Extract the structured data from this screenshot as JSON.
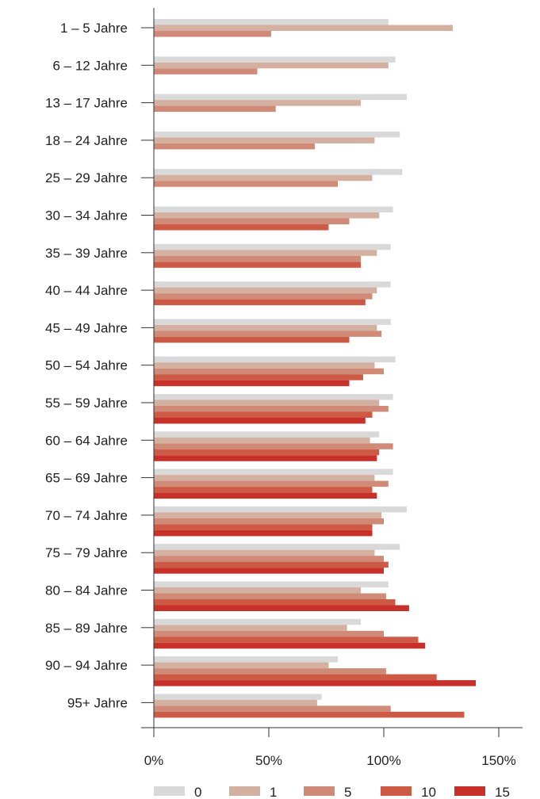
{
  "chart_data": {
    "type": "bar",
    "orientation": "horizontal",
    "categories": [
      "1 – 5 Jahre",
      "6 – 12 Jahre",
      "13 – 17 Jahre",
      "18 – 24 Jahre",
      "25 – 29 Jahre",
      "30 – 34 Jahre",
      "35 – 39 Jahre",
      "40 – 44 Jahre",
      "45 – 49 Jahre",
      "50 – 54 Jahre",
      "55 – 59 Jahre",
      "60 – 64 Jahre",
      "65 – 69 Jahre",
      "70 – 74 Jahre",
      "75 – 79 Jahre",
      "80 – 84 Jahre",
      "85 – 89 Jahre",
      "90 – 94 Jahre",
      "95+ Jahre"
    ],
    "series": [
      {
        "name": "0",
        "color": "#d9d9d9",
        "values": [
          102,
          105,
          110,
          107,
          108,
          104,
          103,
          103,
          103,
          105,
          104,
          98,
          104,
          110,
          107,
          102,
          90,
          80,
          73
        ]
      },
      {
        "name": "1",
        "color": "#d4b0a0",
        "values": [
          130,
          102,
          90,
          96,
          95,
          98,
          97,
          97,
          97,
          96,
          98,
          94,
          96,
          99,
          96,
          90,
          84,
          76,
          71
        ]
      },
      {
        "name": "5",
        "color": "#d08a78",
        "values": [
          51,
          45,
          53,
          70,
          80,
          85,
          90,
          95,
          99,
          100,
          102,
          104,
          102,
          100,
          100,
          101,
          100,
          101,
          103
        ]
      },
      {
        "name": "10",
        "color": "#cc5a45",
        "values": [
          null,
          null,
          null,
          null,
          null,
          76,
          90,
          92,
          85,
          91,
          95,
          98,
          95,
          95,
          102,
          105,
          115,
          123,
          135
        ]
      },
      {
        "name": "15",
        "color": "#c8302a",
        "values": [
          null,
          null,
          null,
          null,
          null,
          null,
          null,
          null,
          null,
          85,
          92,
          97,
          97,
          95,
          100,
          111,
          118,
          140,
          null
        ]
      }
    ],
    "x_ticks": [
      "0%",
      "50%",
      "100%",
      "150%"
    ],
    "xlim": [
      0,
      160
    ],
    "title": "",
    "xlabel": "",
    "ylabel": "",
    "grid": false,
    "legend_position": "bottom"
  }
}
